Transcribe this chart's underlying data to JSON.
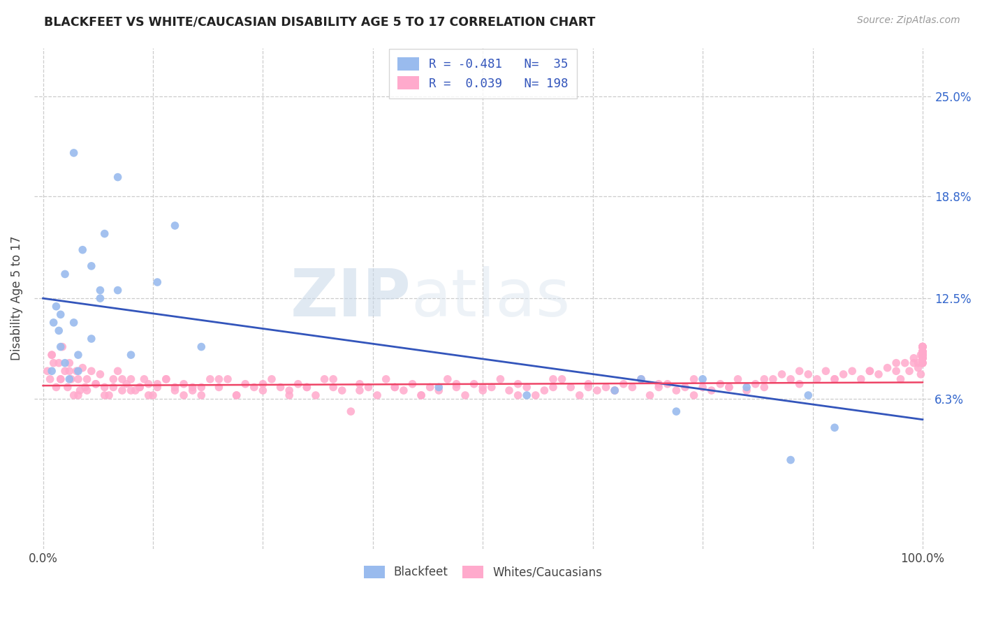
{
  "title": "BLACKFEET VS WHITE/CAUCASIAN DISABILITY AGE 5 TO 17 CORRELATION CHART",
  "source": "Source: ZipAtlas.com",
  "ylabel": "Disability Age 5 to 17",
  "xlim": [
    -1,
    101
  ],
  "ylim": [
    -3,
    28
  ],
  "ytick_vals": [
    6.3,
    12.5,
    18.8,
    25.0
  ],
  "ytick_labels": [
    "6.3%",
    "12.5%",
    "18.8%",
    "25.0%"
  ],
  "xtick_vals": [
    0,
    100
  ],
  "xtick_labels": [
    "0.0%",
    "100.0%"
  ],
  "minor_xticks": [
    12.5,
    25.0,
    37.5,
    50.0,
    62.5,
    75.0,
    87.5
  ],
  "grid_color": "#cccccc",
  "background_color": "#ffffff",
  "blue_color": "#99bbee",
  "pink_color": "#ffaacc",
  "blue_line_color": "#3355bb",
  "pink_line_color": "#ee4466",
  "R_blue": -0.481,
  "N_blue": 35,
  "R_pink": 0.039,
  "N_pink": 198,
  "legend_label_blue": "Blackfeet",
  "legend_label_pink": "Whites/Caucasians",
  "watermark_zip": "ZIP",
  "watermark_atlas": "atlas",
  "blue_trend_y0": 12.5,
  "blue_trend_y1": 5.0,
  "pink_trend_y0": 7.1,
  "pink_trend_y1": 7.3,
  "blue_x": [
    1.5,
    3.5,
    8.5,
    15.0,
    2.5,
    5.5,
    7.0,
    8.5,
    4.5,
    6.5,
    2.0,
    3.5,
    1.2,
    1.8,
    5.5,
    6.5,
    2.0,
    13.0,
    4.0,
    2.5,
    10.0,
    4.0,
    3.0,
    1.0,
    18.0,
    45.0,
    65.0,
    75.0,
    80.0,
    87.0,
    68.0,
    55.0,
    72.0,
    90.0,
    85.0
  ],
  "blue_y": [
    12.0,
    21.5,
    20.0,
    17.0,
    14.0,
    14.5,
    16.5,
    13.0,
    15.5,
    12.5,
    11.5,
    11.0,
    11.0,
    10.5,
    10.0,
    13.0,
    9.5,
    13.5,
    9.0,
    8.5,
    9.0,
    8.0,
    7.5,
    8.0,
    9.5,
    7.0,
    6.8,
    7.5,
    7.0,
    6.5,
    7.5,
    6.5,
    5.5,
    4.5,
    2.5
  ],
  "pink_x": [
    0.5,
    0.8,
    1.0,
    1.2,
    1.5,
    1.8,
    2.0,
    2.2,
    2.5,
    2.8,
    3.0,
    3.2,
    3.5,
    3.8,
    4.0,
    4.2,
    4.5,
    4.8,
    5.0,
    5.5,
    6.0,
    6.5,
    7.0,
    7.5,
    8.0,
    8.5,
    9.0,
    9.5,
    10.0,
    10.5,
    11.0,
    11.5,
    12.0,
    12.5,
    13.0,
    14.0,
    15.0,
    16.0,
    17.0,
    18.0,
    19.0,
    20.0,
    21.0,
    22.0,
    23.0,
    24.0,
    25.0,
    26.0,
    27.0,
    28.0,
    29.0,
    30.0,
    31.0,
    32.0,
    33.0,
    34.0,
    35.0,
    36.0,
    37.0,
    38.0,
    39.0,
    40.0,
    41.0,
    42.0,
    43.0,
    44.0,
    45.0,
    46.0,
    47.0,
    48.0,
    49.0,
    50.0,
    51.0,
    52.0,
    53.0,
    54.0,
    55.0,
    56.0,
    57.0,
    58.0,
    59.0,
    60.0,
    61.0,
    62.0,
    63.0,
    64.0,
    65.0,
    66.0,
    67.0,
    68.0,
    69.0,
    70.0,
    71.0,
    72.0,
    73.0,
    74.0,
    75.0,
    76.0,
    77.0,
    78.0,
    79.0,
    80.0,
    81.0,
    82.0,
    83.0,
    84.0,
    85.0,
    86.0,
    87.0,
    88.0,
    89.0,
    90.0,
    91.0,
    92.0,
    93.0,
    94.0,
    95.0,
    96.0,
    97.0,
    97.5,
    98.0,
    98.5,
    99.0,
    99.5,
    99.8,
    1.0,
    2.0,
    3.0,
    4.0,
    5.0,
    6.0,
    7.0,
    8.0,
    9.0,
    10.0,
    11.0,
    12.0,
    13.0,
    14.0,
    15.0,
    16.0,
    17.0,
    18.0,
    20.0,
    22.0,
    25.0,
    28.0,
    30.0,
    33.0,
    36.0,
    40.0,
    43.0,
    47.0,
    50.0,
    54.0,
    58.0,
    62.0,
    65.0,
    70.0,
    74.0,
    78.0,
    82.0,
    86.0,
    90.0,
    94.0,
    97.0,
    99.0,
    99.5,
    99.8,
    100.0,
    100.0,
    100.0,
    100.0,
    100.0,
    100.0,
    100.0,
    100.0,
    100.0,
    100.0,
    100.0,
    100.0,
    100.0,
    100.0,
    100.0,
    100.0,
    100.0,
    100.0,
    100.0,
    100.0,
    100.0,
    100.0,
    100.0,
    100.0,
    100.0,
    100.0,
    100.0,
    100.0,
    100.0
  ],
  "pink_y": [
    8.0,
    7.5,
    9.0,
    8.5,
    7.0,
    8.5,
    7.5,
    9.5,
    8.0,
    7.0,
    8.5,
    7.5,
    6.5,
    8.0,
    7.5,
    6.8,
    8.2,
    7.0,
    7.5,
    8.0,
    7.2,
    7.8,
    7.0,
    6.5,
    7.5,
    8.0,
    6.8,
    7.2,
    7.5,
    6.8,
    7.0,
    7.5,
    7.2,
    6.5,
    7.0,
    7.5,
    6.8,
    7.2,
    7.0,
    6.5,
    7.5,
    7.0,
    7.5,
    6.5,
    7.2,
    7.0,
    6.8,
    7.5,
    7.0,
    6.5,
    7.2,
    7.0,
    6.5,
    7.5,
    7.0,
    6.8,
    5.5,
    7.2,
    7.0,
    6.5,
    7.5,
    7.0,
    6.8,
    7.2,
    6.5,
    7.0,
    6.8,
    7.5,
    7.0,
    6.5,
    7.2,
    6.8,
    7.0,
    7.5,
    6.8,
    7.2,
    7.0,
    6.5,
    6.8,
    7.0,
    7.5,
    7.0,
    6.5,
    7.2,
    6.8,
    7.0,
    6.8,
    7.2,
    7.0,
    7.5,
    6.5,
    7.0,
    7.2,
    6.8,
    7.0,
    7.5,
    7.0,
    6.8,
    7.2,
    7.0,
    7.5,
    6.8,
    7.2,
    7.0,
    7.5,
    7.8,
    7.5,
    7.2,
    7.8,
    7.5,
    8.0,
    7.5,
    7.8,
    8.0,
    7.5,
    8.0,
    7.8,
    8.2,
    8.0,
    7.5,
    8.5,
    8.0,
    8.5,
    8.2,
    7.8,
    9.0,
    7.5,
    8.0,
    6.5,
    6.8,
    7.2,
    6.5,
    7.0,
    7.5,
    6.8,
    7.0,
    6.5,
    7.2,
    7.5,
    7.0,
    6.5,
    6.8,
    7.0,
    7.5,
    6.5,
    7.2,
    6.8,
    7.0,
    7.5,
    6.8,
    7.0,
    6.5,
    7.2,
    7.0,
    6.5,
    7.5,
    7.0,
    6.8,
    7.2,
    6.5,
    7.0,
    7.5,
    8.0,
    7.5,
    8.0,
    8.5,
    8.8,
    8.5,
    9.0,
    9.5,
    8.8,
    9.2,
    9.0,
    8.5,
    9.5,
    9.0,
    9.2,
    8.8,
    9.5,
    9.0,
    8.8,
    9.2,
    9.5,
    9.0,
    8.5,
    8.8,
    9.5,
    9.2,
    9.0,
    8.8,
    8.5,
    9.0,
    9.5,
    9.2,
    9.0,
    8.8,
    8.5,
    9.5
  ]
}
